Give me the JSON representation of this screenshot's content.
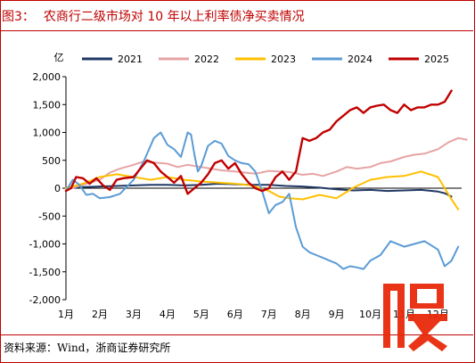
{
  "figure": {
    "label": "图3：",
    "title": "农商行二级市场对 10 年以上利率债净买卖情况",
    "source": "资料来源：Wind，浙商证券研究所",
    "watermark_text": "股"
  },
  "colors": {
    "frame": "#c00000",
    "2021": "#1f3864",
    "2022": "#e6a4a4",
    "2023": "#ffc000",
    "2024": "#5b9bd5",
    "2025": "#c00000"
  },
  "chart_data": {
    "type": "line",
    "unit_label": "亿",
    "ylim": [
      -2000,
      2000
    ],
    "yticks": [
      -2000,
      -1500,
      -1000,
      -500,
      0,
      500,
      1000,
      1500,
      2000
    ],
    "ytick_labels": [
      "-2,000",
      "-1,500",
      "-1,000",
      "-500",
      "0",
      "500",
      "1,000",
      "1,500",
      "2,000"
    ],
    "x_month_labels": [
      "1月",
      "2月",
      "3月",
      "4月",
      "5月",
      "6月",
      "7月",
      "8月",
      "9月",
      "10月",
      "11月",
      "12月"
    ],
    "legend_position": "top",
    "grid": false,
    "series": [
      {
        "name": "2021",
        "color": "#1f3864",
        "x": [
          1.0,
          1.5,
          2.0,
          2.5,
          3.0,
          3.5,
          4.0,
          4.5,
          5.0,
          5.5,
          6.0,
          6.5,
          7.0,
          7.5,
          8.0,
          8.5,
          9.0,
          9.5,
          10.0,
          10.5,
          11.0,
          11.5,
          12.0,
          12.2,
          12.4
        ],
        "values": [
          0,
          20,
          30,
          40,
          50,
          60,
          60,
          50,
          60,
          80,
          70,
          60,
          60,
          40,
          30,
          10,
          -20,
          -40,
          -30,
          -50,
          -40,
          -30,
          -60,
          -90,
          -150
        ]
      },
      {
        "name": "2022",
        "color": "#e6a4a4",
        "x": [
          1.0,
          1.5,
          2.0,
          2.3,
          2.6,
          3.0,
          3.3,
          3.6,
          4.0,
          4.3,
          4.6,
          5.0,
          5.3,
          5.6,
          6.0,
          6.3,
          6.6,
          7.0,
          7.3,
          7.6,
          8.0,
          8.3,
          8.6,
          9.0,
          9.3,
          9.6,
          10.0,
          10.3,
          10.6,
          11.0,
          11.3,
          11.6,
          12.0,
          12.3,
          12.6,
          12.85
        ],
        "values": [
          -30,
          60,
          150,
          280,
          350,
          420,
          480,
          460,
          440,
          380,
          420,
          380,
          350,
          320,
          300,
          280,
          260,
          310,
          300,
          290,
          240,
          260,
          220,
          300,
          380,
          350,
          380,
          450,
          480,
          560,
          600,
          620,
          700,
          820,
          900,
          870
        ]
      },
      {
        "name": "2023",
        "color": "#ffc000",
        "x": [
          1.0,
          1.5,
          2.0,
          2.5,
          3.0,
          3.5,
          4.0,
          4.5,
          5.0,
          5.5,
          6.0,
          6.5,
          7.0,
          7.3,
          7.6,
          8.0,
          8.5,
          9.0,
          9.5,
          10.0,
          10.5,
          11.0,
          11.5,
          12.0,
          12.2,
          12.4,
          12.6
        ],
        "values": [
          0,
          80,
          200,
          250,
          200,
          150,
          200,
          150,
          120,
          100,
          80,
          50,
          -50,
          -150,
          -180,
          -200,
          -120,
          -180,
          10,
          150,
          200,
          220,
          300,
          200,
          0,
          -200,
          -380
        ]
      },
      {
        "name": "2024",
        "color": "#5b9bd5",
        "x": [
          1.0,
          1.2,
          1.4,
          1.6,
          1.8,
          2.0,
          2.3,
          2.6,
          3.0,
          3.3,
          3.6,
          3.8,
          4.0,
          4.2,
          4.4,
          4.6,
          4.7,
          4.8,
          4.9,
          5.0,
          5.2,
          5.4,
          5.6,
          5.8,
          6.0,
          6.2,
          6.4,
          6.6,
          6.8,
          7.0,
          7.2,
          7.4,
          7.6,
          7.8,
          8.0,
          8.2,
          8.4,
          8.6,
          8.8,
          9.0,
          9.2,
          9.4,
          9.6,
          9.8,
          10.0,
          10.3,
          10.6,
          11.0,
          11.3,
          11.6,
          12.0,
          12.2,
          12.4,
          12.6
        ],
        "values": [
          -50,
          150,
          60,
          -120,
          -100,
          -180,
          -160,
          -100,
          150,
          480,
          900,
          1000,
          780,
          700,
          560,
          1000,
          960,
          600,
          300,
          400,
          760,
          850,
          800,
          580,
          500,
          450,
          430,
          300,
          -50,
          -450,
          -300,
          -250,
          -100,
          -700,
          -1050,
          -1150,
          -1200,
          -1250,
          -1300,
          -1350,
          -1450,
          -1400,
          -1420,
          -1450,
          -1300,
          -1200,
          -950,
          -1050,
          -1000,
          -950,
          -1100,
          -1400,
          -1300,
          -1050
        ]
      },
      {
        "name": "2025",
        "color": "#c00000",
        "x": [
          1.0,
          1.15,
          1.3,
          1.5,
          1.7,
          1.9,
          2.1,
          2.3,
          2.5,
          2.7,
          3.0,
          3.2,
          3.4,
          3.6,
          3.8,
          4.0,
          4.2,
          4.4,
          4.6,
          4.8,
          5.0,
          5.2,
          5.4,
          5.6,
          5.8,
          6.0,
          6.2,
          6.4,
          6.6,
          6.8,
          7.0,
          7.2,
          7.4,
          7.6,
          7.8,
          8.0,
          8.2,
          8.4,
          8.6,
          8.8,
          9.0,
          9.2,
          9.4,
          9.6,
          9.8,
          10.0,
          10.2,
          10.4,
          10.6,
          10.8,
          11.0,
          11.2,
          11.4,
          11.6,
          11.8,
          12.0,
          12.2,
          12.4
        ],
        "values": [
          -50,
          0,
          200,
          180,
          80,
          180,
          50,
          -30,
          150,
          180,
          200,
          350,
          500,
          450,
          300,
          200,
          100,
          220,
          -100,
          0,
          100,
          250,
          450,
          500,
          350,
          450,
          250,
          100,
          0,
          -50,
          0,
          200,
          300,
          150,
          300,
          900,
          850,
          900,
          1000,
          1050,
          1200,
          1300,
          1400,
          1450,
          1350,
          1450,
          1480,
          1500,
          1400,
          1350,
          1500,
          1400,
          1450,
          1450,
          1500,
          1500,
          1550,
          1750
        ]
      }
    ]
  }
}
